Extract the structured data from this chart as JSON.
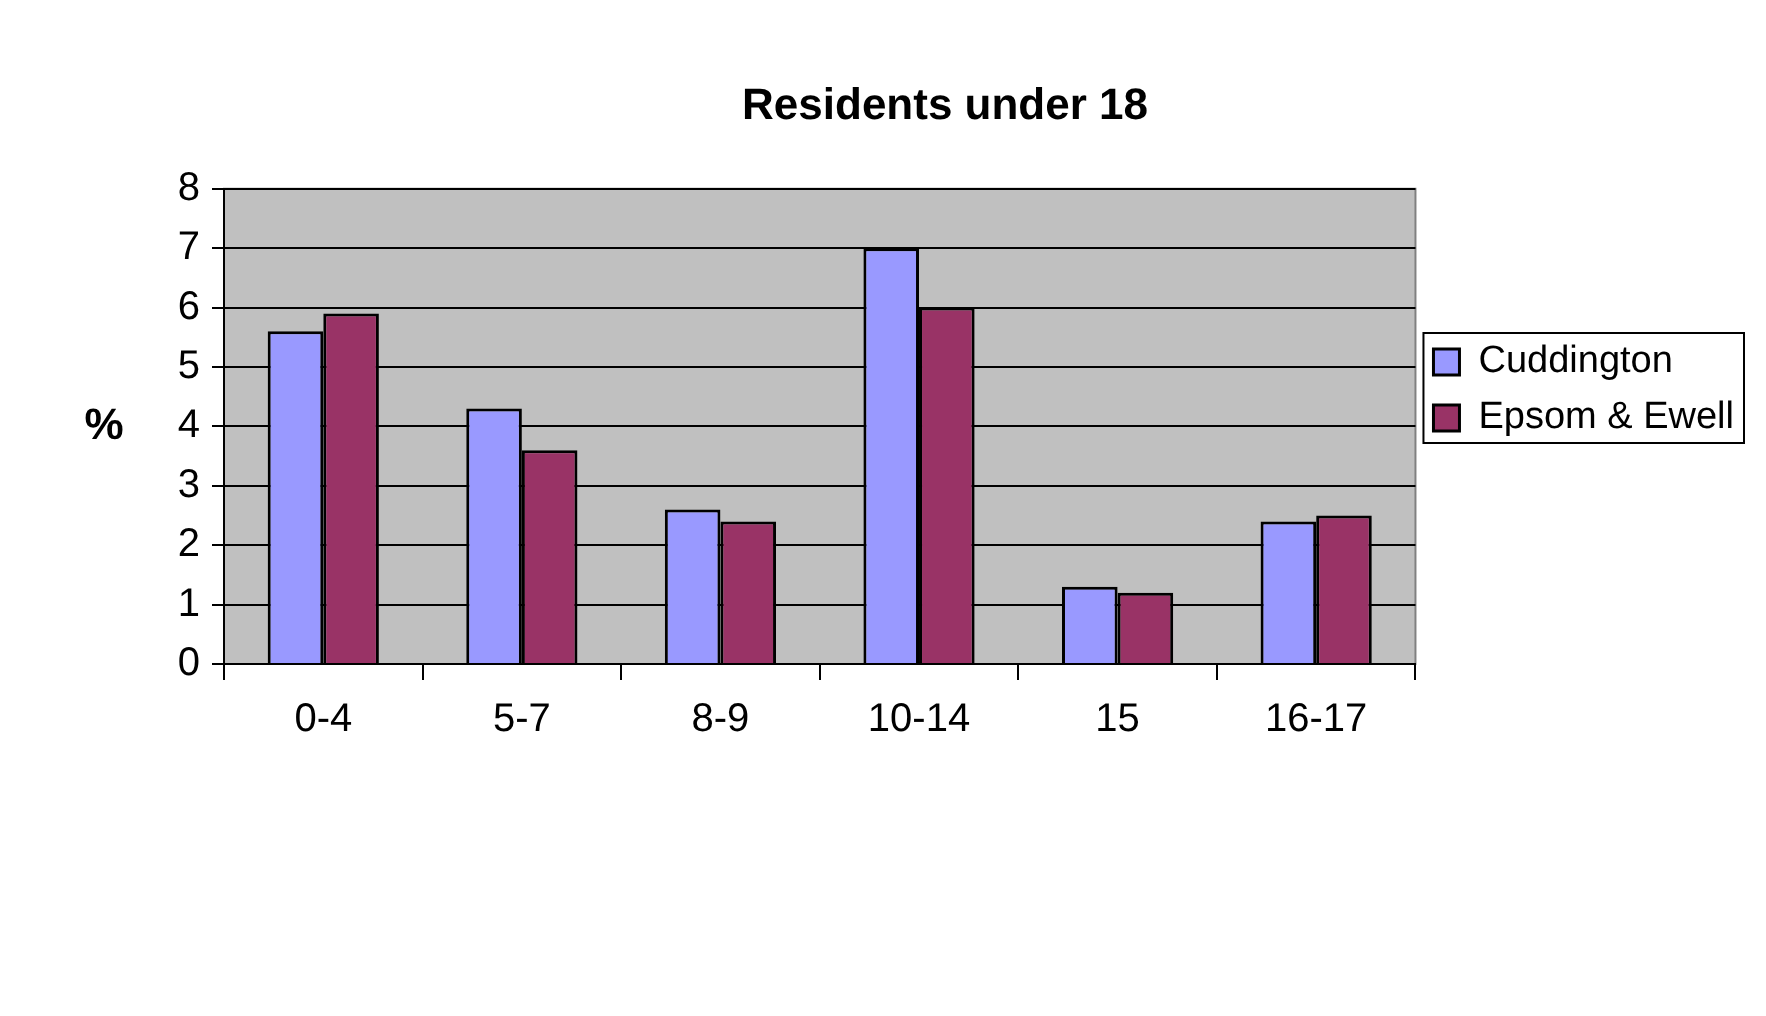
{
  "chart_data": {
    "type": "bar",
    "title": "Residents under 18",
    "ylabel": "%",
    "categories": [
      "0-4",
      "5-7",
      "8-9",
      "10-14",
      "15",
      "16-17"
    ],
    "series": [
      {
        "name": "Cuddington",
        "color": "#9999ff",
        "values": [
          5.6,
          4.3,
          2.6,
          7,
          1.3,
          2.4
        ]
      },
      {
        "name": "Epsom & Ewell",
        "color": "#993366",
        "values": [
          5.9,
          3.6,
          2.4,
          6,
          1.2,
          2.5
        ]
      }
    ],
    "ylim": [
      0,
      8
    ],
    "yticks": [
      0,
      1,
      2,
      3,
      4,
      5,
      6,
      7,
      8
    ],
    "grid": "y",
    "legend": "right"
  }
}
